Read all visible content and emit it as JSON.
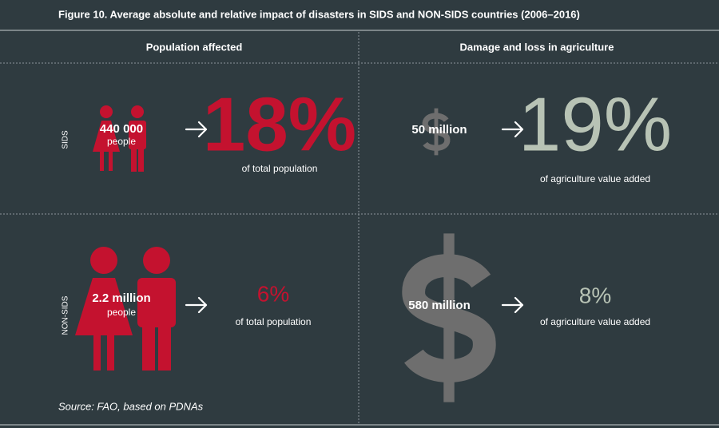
{
  "title": "Figure 10. Average absolute and relative impact of disasters in SIDS and NON-SIDS countries (2006–2016)",
  "columns": [
    "Population affected",
    "Damage and loss in agriculture"
  ],
  "rows": [
    {
      "label": "SIDS",
      "population": {
        "count": "440 000",
        "unit": "people",
        "percent": "18%",
        "note": "of total population"
      },
      "agriculture": {
        "amount": "50 million",
        "percent": "19%",
        "note": "of agriculture value added"
      }
    },
    {
      "label": "NON-SIDS",
      "population": {
        "count": "2.2 million",
        "unit": "people",
        "percent": "6%",
        "note": "of total population"
      },
      "agriculture": {
        "amount": "580 million",
        "percent": "8%",
        "note": "of agriculture value added"
      }
    }
  ],
  "source": "Source: FAO, based on PDNAs"
}
